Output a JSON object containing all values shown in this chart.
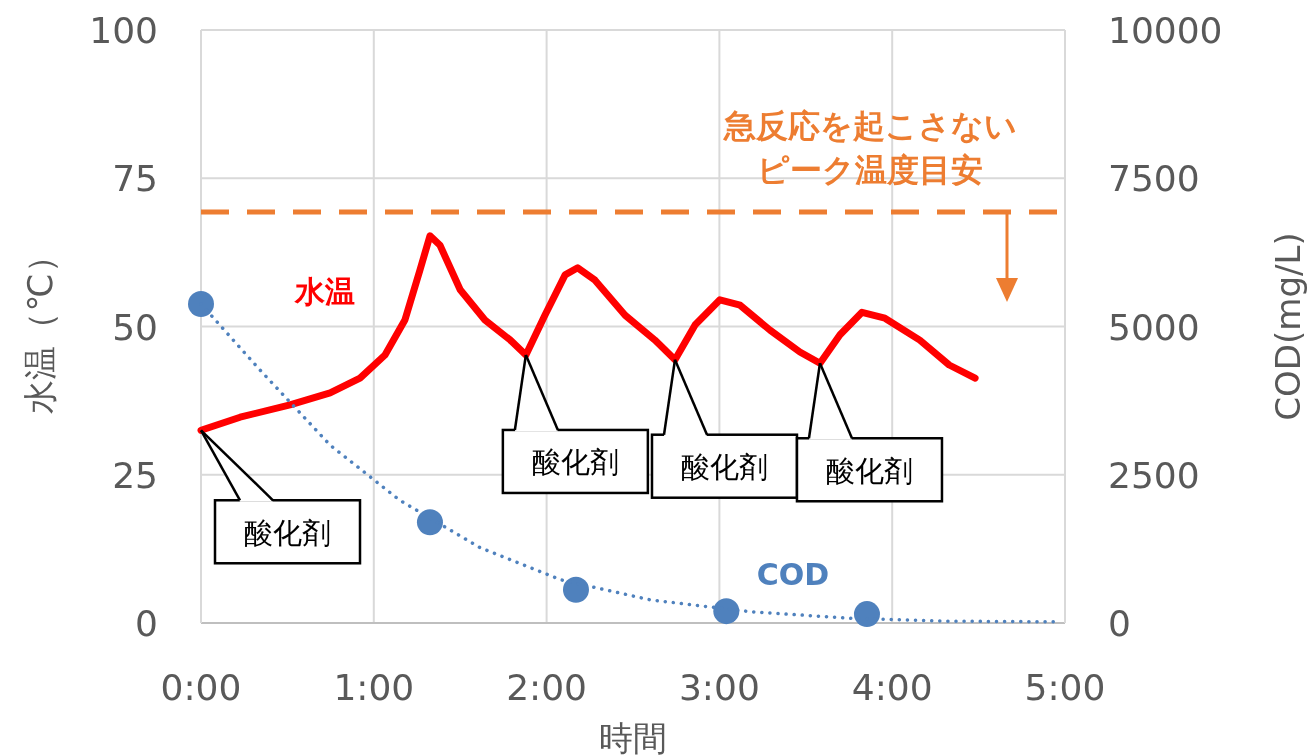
{
  "chart_data": {
    "type": "line",
    "xlabel": "時間",
    "ylabel": "水温（℃）",
    "y2label": "COD(mg/L)",
    "xlim": [
      0,
      5
    ],
    "xticks": [
      {
        "value": 0,
        "label": "0:00"
      },
      {
        "value": 1,
        "label": "1:00"
      },
      {
        "value": 2,
        "label": "2:00"
      },
      {
        "value": 3,
        "label": "3:00"
      },
      {
        "value": 4,
        "label": "4:00"
      },
      {
        "value": 5,
        "label": "5:00"
      }
    ],
    "ylim": [
      0,
      100
    ],
    "yticks": [
      0,
      25,
      50,
      75,
      100
    ],
    "y2lim": [
      0,
      10000
    ],
    "y2ticks": [
      0,
      2500,
      5000,
      7500,
      10000
    ],
    "grid": true,
    "legend": false,
    "series": [
      {
        "name": "水温",
        "color": "#ff0000",
        "line_style": "solid",
        "x": [
          0,
          0.226,
          0.515,
          0.747,
          0.92,
          1.065,
          1.18,
          1.267,
          1.325,
          1.383,
          1.5,
          1.643,
          1.79,
          1.88,
          1.99,
          2.107,
          2.18,
          2.28,
          2.454,
          2.627,
          2.743,
          2.86,
          3.003,
          3.12,
          3.293,
          3.466,
          3.582,
          3.698,
          3.825,
          3.958,
          4.16,
          4.33,
          4.48
        ],
        "values": [
          32.5,
          34.7,
          36.8,
          38.8,
          41.3,
          45.2,
          51.1,
          59.5,
          65.3,
          63.7,
          56.2,
          51.1,
          47.7,
          45.2,
          51.9,
          58.7,
          59.9,
          57.8,
          51.9,
          47.7,
          44.4,
          50.3,
          54.5,
          53.6,
          49.4,
          45.7,
          43.8,
          48.6,
          52.4,
          51.4,
          47.7,
          43.5,
          41.3
        ]
      },
      {
        "name": "COD",
        "type": "scatter",
        "axis": "y2",
        "color": "#4f81bd",
        "marker": "circle",
        "x": [
          0,
          1.325,
          2.17,
          3.04,
          3.854
        ],
        "values": [
          5380,
          1700,
          560,
          200,
          150
        ]
      },
      {
        "type": "line",
        "axis": "y2",
        "color": "#4f81bd",
        "line_style": "dotted",
        "x": [
          0,
          0.34,
          0.747,
          1.15,
          1.615,
          2.08,
          2.6,
          3.18,
          3.76,
          4.33,
          4.97
        ],
        "values": [
          5380,
          4270,
          3000,
          2070,
          1270,
          730,
          390,
          190,
          80,
          30,
          20
        ]
      }
    ],
    "ref_lines": [
      {
        "axis": "y",
        "value": 69.3,
        "label": "急反応を起こさないピーク温度目安",
        "color": "#ed7d31",
        "line_style": "dashed"
      }
    ],
    "annotations": [
      {
        "text": "酸化剤",
        "x": 0,
        "y": 32.5
      },
      {
        "text": "酸化剤",
        "x": 1.88,
        "y": 45.2
      },
      {
        "text": "酸化剤",
        "x": 2.743,
        "y": 44.4
      },
      {
        "text": "酸化剤",
        "x": 3.582,
        "y": 43.8
      }
    ]
  }
}
